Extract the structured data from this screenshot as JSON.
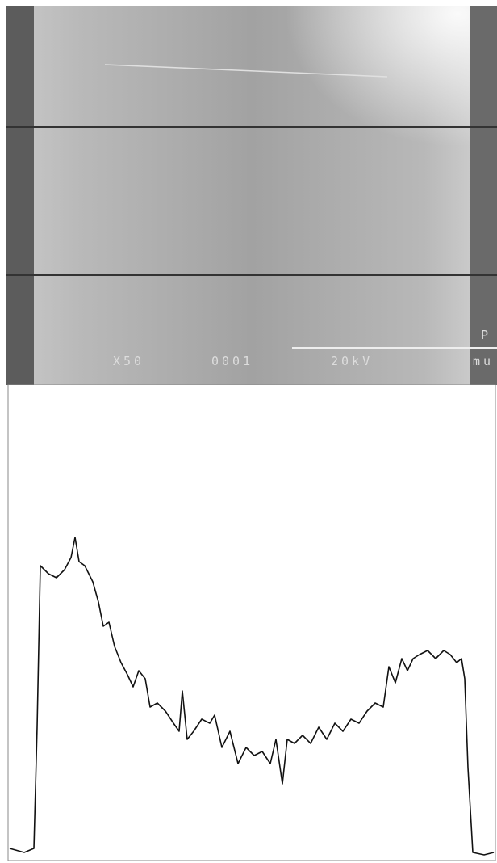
{
  "micrograph": {
    "labels": [
      "X50",
      "0001",
      "20kV",
      "P",
      "mu"
    ]
  },
  "chart_data": {
    "type": "line",
    "x": [
      2,
      20,
      32,
      36,
      40,
      45,
      50,
      60,
      70,
      78,
      83,
      88,
      95,
      105,
      112,
      118,
      125,
      132,
      140,
      148,
      155,
      162,
      170,
      176,
      185,
      195,
      205,
      212,
      216,
      222,
      230,
      240,
      250,
      256,
      265,
      275,
      285,
      295,
      305,
      315,
      325,
      332,
      340,
      346,
      355,
      365,
      375,
      385,
      395,
      405,
      415,
      425,
      435,
      445,
      455,
      465,
      472,
      480,
      488,
      495,
      502,
      510,
      520,
      530,
      540,
      548,
      556,
      562,
      566,
      570,
      576,
      590,
      602
    ],
    "values": [
      15,
      10,
      15,
      165,
      365,
      360,
      355,
      350,
      360,
      375,
      400,
      370,
      365,
      345,
      320,
      290,
      295,
      265,
      245,
      230,
      215,
      235,
      225,
      190,
      195,
      185,
      170,
      160,
      210,
      150,
      160,
      175,
      170,
      180,
      140,
      160,
      120,
      140,
      130,
      135,
      120,
      150,
      95,
      150,
      145,
      155,
      145,
      165,
      150,
      170,
      160,
      175,
      170,
      185,
      195,
      190,
      240,
      220,
      250,
      235,
      250,
      255,
      260,
      250,
      260,
      255,
      245,
      250,
      225,
      115,
      10,
      7,
      10
    ],
    "color": "#111111",
    "xlim": [
      0,
      604
    ],
    "ylim": [
      0,
      589
    ]
  }
}
